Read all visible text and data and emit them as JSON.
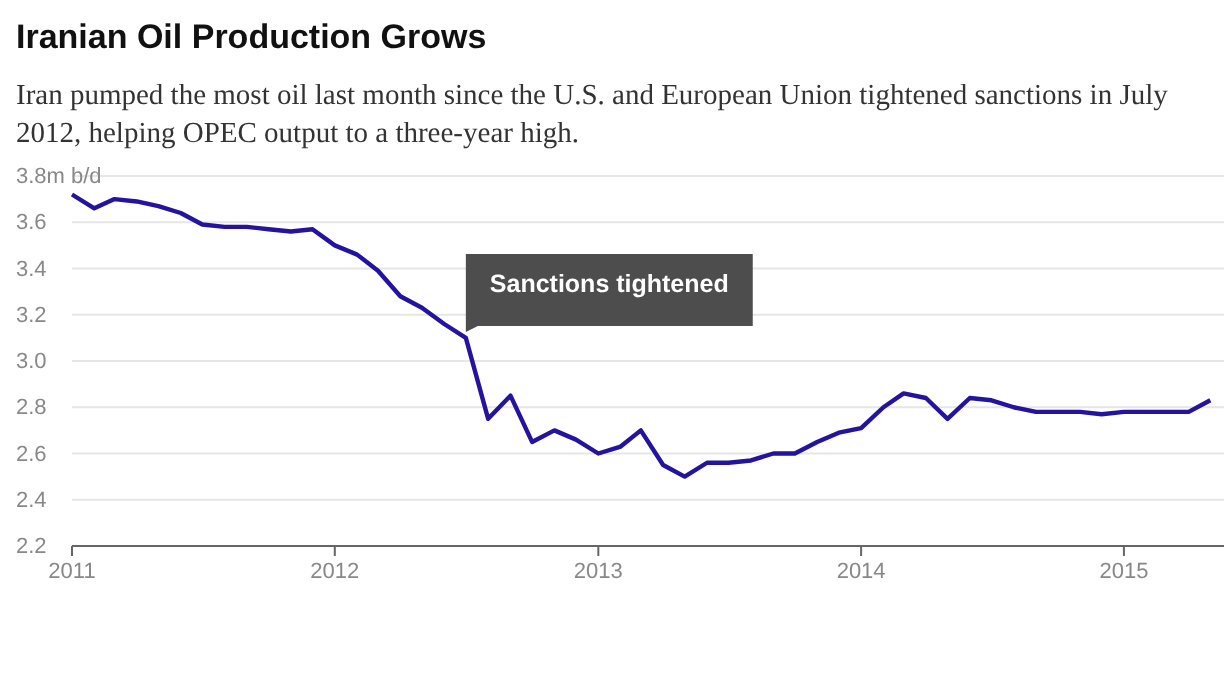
{
  "chart_data": {
    "type": "line",
    "title": "Iranian Oil Production Grows",
    "subtitle": "Iran pumped the most oil last month since the U.S. and European Union tightened sanctions in July 2012, helping OPEC output to a three-year high.",
    "x": [
      "2011-01",
      "2011-02",
      "2011-03",
      "2011-04",
      "2011-05",
      "2011-06",
      "2011-07",
      "2011-08",
      "2011-09",
      "2011-10",
      "2011-11",
      "2011-12",
      "2012-01",
      "2012-02",
      "2012-03",
      "2012-04",
      "2012-05",
      "2012-06",
      "2012-07",
      "2012-08",
      "2012-09",
      "2012-10",
      "2012-11",
      "2012-12",
      "2013-01",
      "2013-02",
      "2013-03",
      "2013-04",
      "2013-05",
      "2013-06",
      "2013-07",
      "2013-08",
      "2013-09",
      "2013-10",
      "2013-11",
      "2013-12",
      "2014-01",
      "2014-02",
      "2014-03",
      "2014-04",
      "2014-05",
      "2014-06",
      "2014-07",
      "2014-08",
      "2014-09",
      "2014-10",
      "2014-11",
      "2014-12",
      "2015-01",
      "2015-02",
      "2015-03",
      "2015-04",
      "2015-05"
    ],
    "series": [
      {
        "color": "#24139e",
        "values": [
          3.72,
          3.66,
          3.7,
          3.69,
          3.67,
          3.64,
          3.59,
          3.58,
          3.58,
          3.57,
          3.56,
          3.57,
          3.5,
          3.46,
          3.39,
          3.28,
          3.23,
          3.16,
          3.1,
          2.75,
          2.85,
          2.65,
          2.7,
          2.66,
          2.6,
          2.63,
          2.7,
          2.55,
          2.5,
          2.56,
          2.56,
          2.57,
          2.6,
          2.6,
          2.65,
          2.69,
          2.71,
          2.8,
          2.86,
          2.84,
          2.75,
          2.84,
          2.83,
          2.8,
          2.78,
          2.78,
          2.78,
          2.77,
          2.78,
          2.78,
          2.78,
          2.78,
          2.83
        ]
      }
    ],
    "xlim": [
      "2011-01-01",
      "2015-05-20"
    ],
    "xticks": [
      {
        "value": "2011-01-01",
        "label": "2011"
      },
      {
        "value": "2012-01-01",
        "label": "2012"
      },
      {
        "value": "2013-01-01",
        "label": "2013"
      },
      {
        "value": "2014-01-01",
        "label": "2014"
      },
      {
        "value": "2015-01-01",
        "label": "2015"
      }
    ],
    "ylim": [
      2.2,
      3.8
    ],
    "yticks": [
      {
        "value": 2.2,
        "label": "2.2"
      },
      {
        "value": 2.4,
        "label": "2.4"
      },
      {
        "value": 2.6,
        "label": "2.6"
      },
      {
        "value": 2.8,
        "label": "2.8"
      },
      {
        "value": 3.0,
        "label": "3.0"
      },
      {
        "value": 3.2,
        "label": "3.2"
      },
      {
        "value": 3.4,
        "label": "3.4"
      },
      {
        "value": 3.6,
        "label": "3.6"
      },
      {
        "value": 3.8,
        "label": "3.8m b/d"
      }
    ],
    "grid": "y",
    "marker": "none",
    "line_style": "solid",
    "annotations": [
      {
        "text": "Sanctions tightened",
        "x": "2012-07",
        "y": 3.1
      }
    ]
  }
}
